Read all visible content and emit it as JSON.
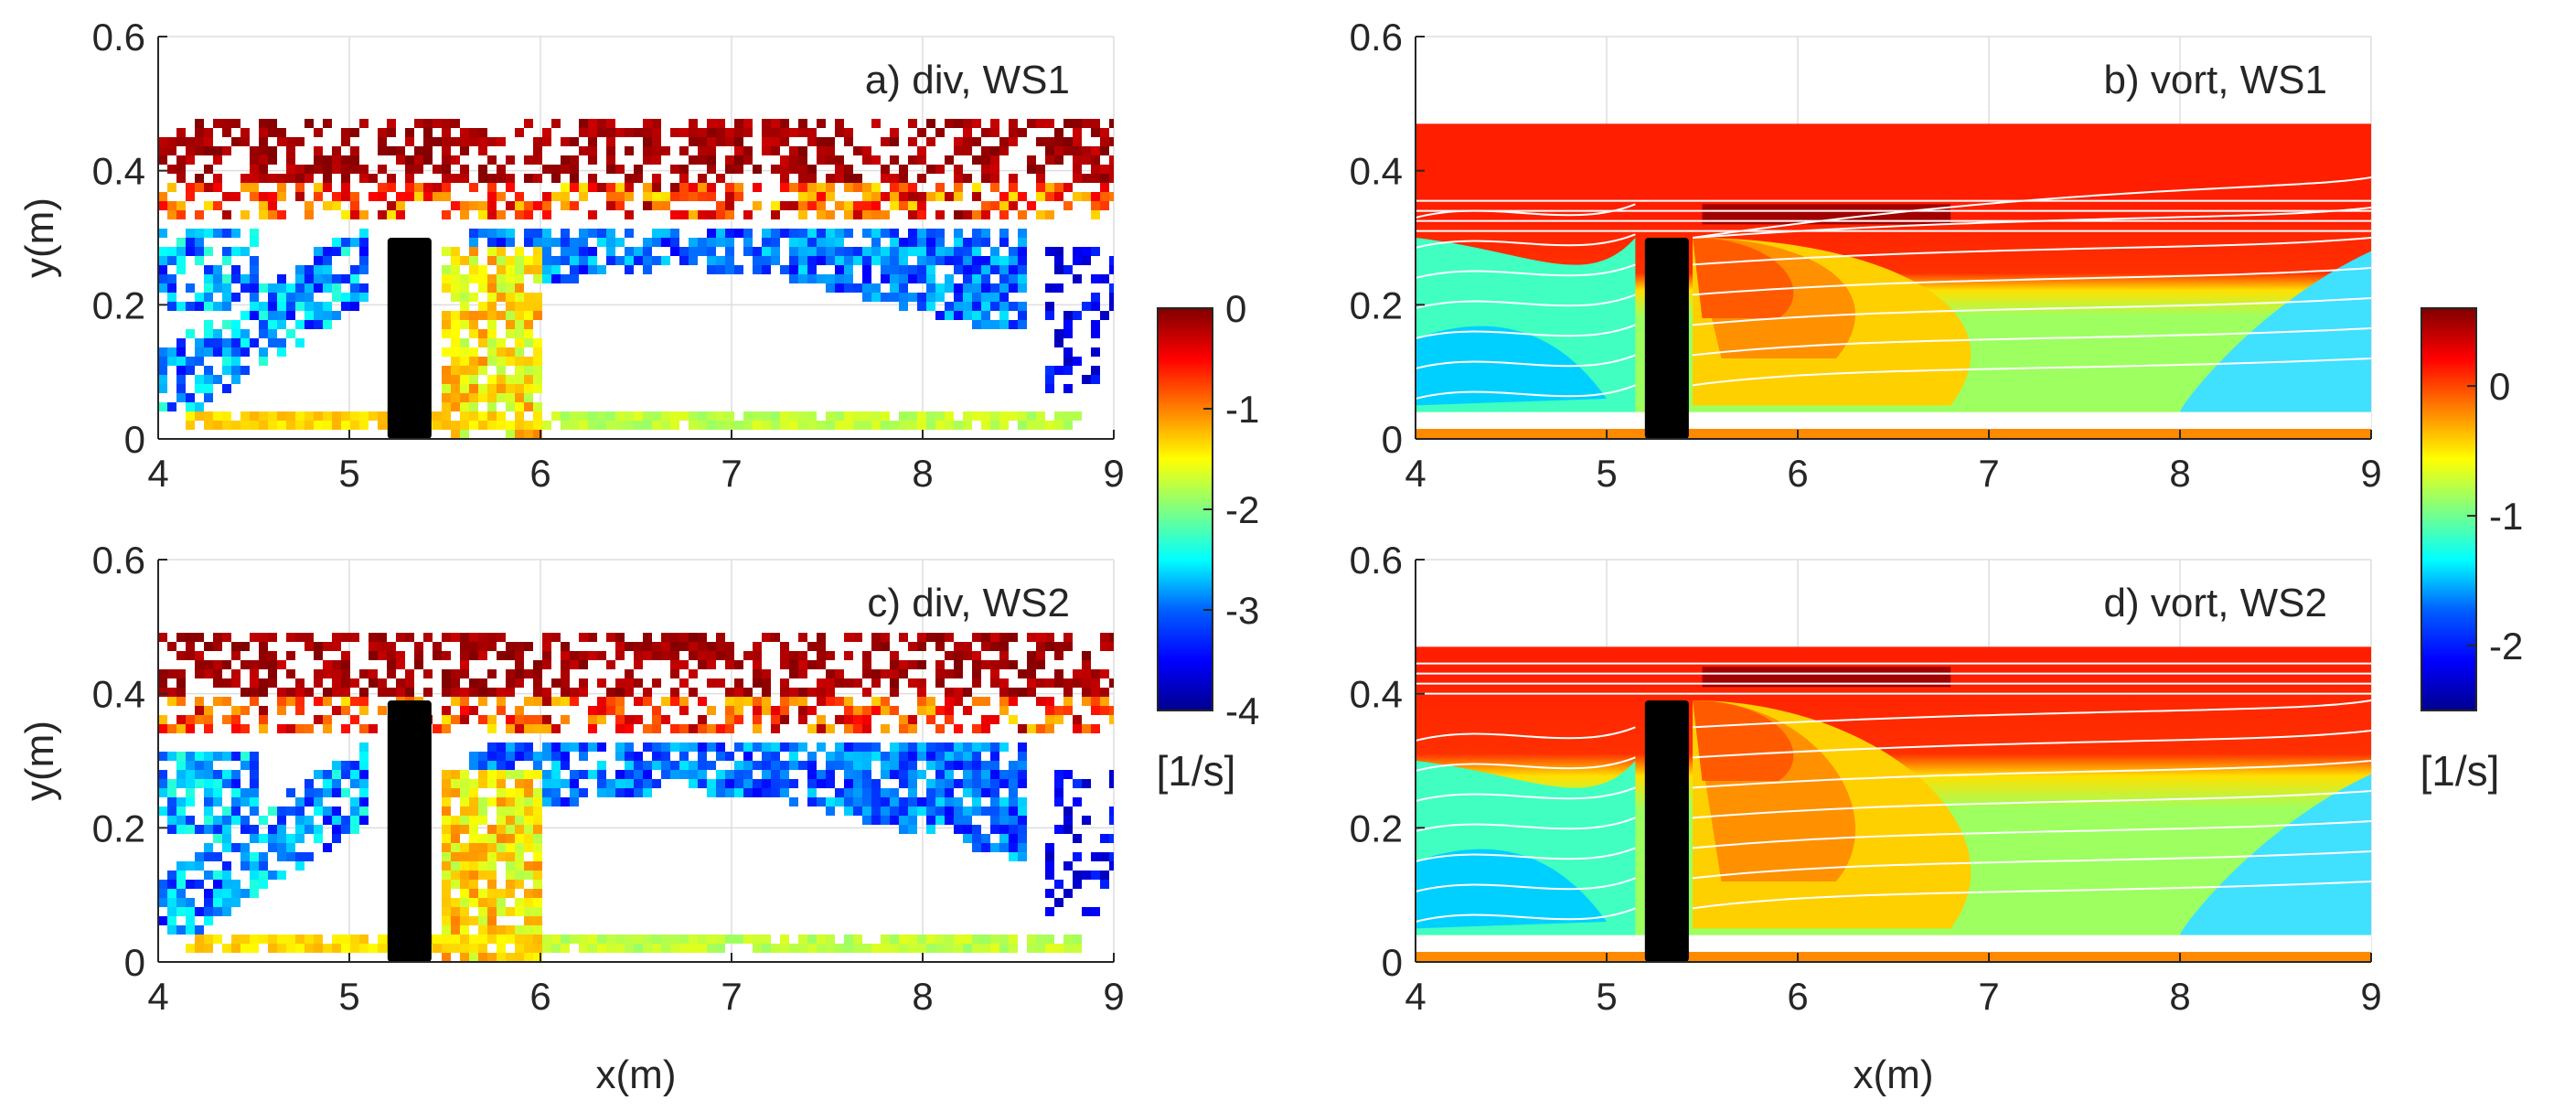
{
  "figure": {
    "description_units": "x and y in metres, colour in [1/s]"
  },
  "colors": {
    "obstacle": "#000000",
    "grid": "#dddddd",
    "axis": "#262626",
    "contour_line": "#ffffff",
    "jet_colormap": [
      "#00008f",
      "#0000ff",
      "#0080ff",
      "#00ffff",
      "#80ff80",
      "#ffff00",
      "#ff8000",
      "#ff0000",
      "#800000"
    ]
  },
  "chart_data": [
    {
      "id": "a",
      "type": "heatmap",
      "title": "a) div, WS1",
      "quantity": "divergence",
      "case": "WS1",
      "xlabel": "",
      "ylabel": "y(m)",
      "xlim": [
        4,
        9
      ],
      "ylim": [
        0,
        0.6
      ],
      "xticks": [
        "4",
        "5",
        "6",
        "7",
        "8",
        "9"
      ],
      "yticks": [
        "0",
        "0.2",
        "0.4",
        "0.6"
      ],
      "grid": true,
      "obstacle": {
        "x": [
          5.2,
          5.43
        ],
        "y": [
          0,
          0.3
        ]
      },
      "colorbar": {
        "ticks": [
          "0",
          "-1",
          "-2",
          "-3",
          "-4"
        ],
        "clim": [
          -4,
          0
        ],
        "unit": "[1/s]"
      }
    },
    {
      "id": "b",
      "type": "heatmap",
      "title": "b) vort, WS1",
      "quantity": "vorticity",
      "case": "WS1",
      "xlabel": "",
      "ylabel": "",
      "xlim": [
        4,
        9
      ],
      "ylim": [
        0,
        0.6
      ],
      "xticks": [
        "4",
        "5",
        "6",
        "7",
        "8",
        "9"
      ],
      "yticks": [
        "0",
        "0.2",
        "0.4",
        "0.6"
      ],
      "grid": true,
      "obstacle": {
        "x": [
          5.2,
          5.43
        ],
        "y": [
          0,
          0.3
        ]
      },
      "colorbar": {
        "ticks": [
          "0",
          "-1",
          "-2"
        ],
        "clim": [
          -2.5,
          0.6
        ],
        "unit": "[1/s]"
      }
    },
    {
      "id": "c",
      "type": "heatmap",
      "title": "c) div, WS2",
      "quantity": "divergence",
      "case": "WS2",
      "xlabel": "x(m)",
      "ylabel": "y(m)",
      "xlim": [
        4,
        9
      ],
      "ylim": [
        0,
        0.6
      ],
      "xticks": [
        "4",
        "5",
        "6",
        "7",
        "8",
        "9"
      ],
      "yticks": [
        "0",
        "0.2",
        "0.4",
        "0.6"
      ],
      "grid": true,
      "obstacle": {
        "x": [
          5.2,
          5.43
        ],
        "y": [
          0,
          0.39
        ]
      }
    },
    {
      "id": "d",
      "type": "heatmap",
      "title": "d) vort, WS2",
      "quantity": "vorticity",
      "case": "WS2",
      "xlabel": "x(m)",
      "ylabel": "",
      "xlim": [
        4,
        9
      ],
      "ylim": [
        0,
        0.6
      ],
      "xticks": [
        "4",
        "5",
        "6",
        "7",
        "8",
        "9"
      ],
      "yticks": [
        "0",
        "0.2",
        "0.4",
        "0.6"
      ],
      "grid": true,
      "obstacle": {
        "x": [
          5.2,
          5.43
        ],
        "y": [
          0,
          0.39
        ]
      }
    }
  ]
}
